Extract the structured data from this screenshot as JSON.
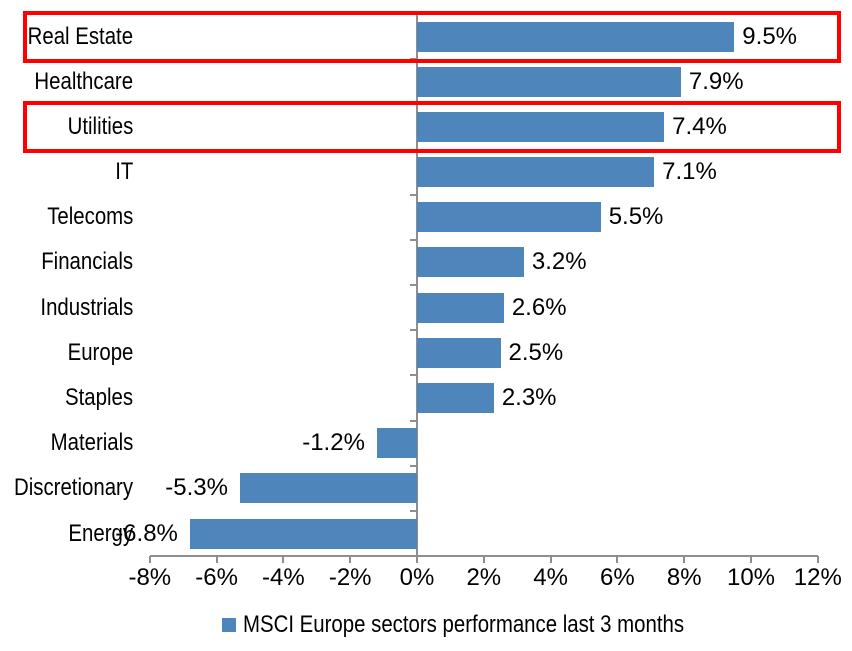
{
  "chart_data": {
    "type": "bar",
    "orientation": "horizontal",
    "title": "",
    "legend_label": "MSCI Europe sectors performance last 3 months",
    "legend_position": "bottom-center",
    "categories": [
      "Real Estate",
      "Healthcare",
      "Utilities",
      "IT",
      "Telecoms",
      "Financials",
      "Industrials",
      "Europe",
      "Staples",
      "Materials",
      "Discretionary",
      "Energy"
    ],
    "values": [
      9.5,
      7.9,
      7.4,
      7.1,
      5.5,
      3.2,
      2.6,
      2.5,
      2.3,
      -1.2,
      -5.3,
      -6.8
    ],
    "value_labels": [
      "9.5%",
      "7.9%",
      "7.4%",
      "7.1%",
      "5.5%",
      "3.2%",
      "2.6%",
      "2.5%",
      "2.3%",
      "-1.2%",
      "-5.3%",
      "-6.8%"
    ],
    "x_tick_labels": [
      "-8%",
      "-6%",
      "-4%",
      "-2%",
      "0%",
      "2%",
      "4%",
      "6%",
      "8%",
      "10%",
      "12%"
    ],
    "xlim": [
      -8,
      12
    ],
    "x_tick_step": 2,
    "grid": false,
    "bar_color": "#4E86BC",
    "axis_color": "#8E8E8E",
    "text_color": "#000000",
    "highlight_box_color": "#FF0000",
    "highlighted_categories": [
      "Real Estate",
      "Utilities"
    ]
  }
}
